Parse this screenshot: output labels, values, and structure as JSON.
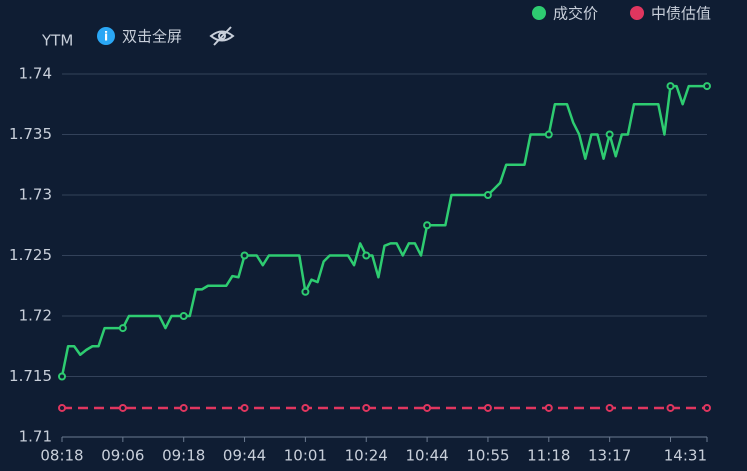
{
  "chart_data": {
    "type": "line",
    "y_axis_label": "YTM",
    "hint": "双击全屏",
    "categories": [
      "08:18",
      null,
      null,
      null,
      null,
      null,
      null,
      null,
      null,
      null,
      "09:06",
      null,
      null,
      null,
      null,
      null,
      null,
      null,
      null,
      null,
      "09:18",
      null,
      null,
      null,
      null,
      null,
      null,
      null,
      null,
      null,
      "09:44",
      null,
      null,
      null,
      null,
      null,
      null,
      null,
      null,
      null,
      "10:01",
      null,
      null,
      null,
      null,
      null,
      null,
      null,
      null,
      null,
      "10:24",
      null,
      null,
      null,
      null,
      null,
      null,
      null,
      null,
      null,
      "10:44",
      null,
      null,
      null,
      null,
      null,
      null,
      null,
      null,
      null,
      "10:55",
      null,
      null,
      null,
      null,
      null,
      null,
      null,
      null,
      null,
      "11:18",
      null,
      null,
      null,
      null,
      null,
      null,
      null,
      null,
      null,
      "13:17",
      null,
      null,
      null,
      null,
      null,
      null,
      null,
      null,
      null,
      null,
      null,
      null,
      null,
      null,
      null,
      "14:31"
    ],
    "series": [
      {
        "name": "成交价",
        "color": "#2ecc71",
        "dashed": false,
        "values": [
          1.715,
          1.7175,
          1.7175,
          1.7168,
          1.7172,
          1.7175,
          1.7175,
          1.719,
          1.719,
          1.719,
          1.719,
          1.72,
          1.72,
          1.72,
          1.72,
          1.72,
          1.72,
          1.719,
          1.72,
          1.72,
          1.72,
          1.72,
          1.7222,
          1.7222,
          1.7225,
          1.7225,
          1.7225,
          1.7225,
          1.7233,
          1.7232,
          1.725,
          1.725,
          1.725,
          1.7242,
          1.725,
          1.725,
          1.725,
          1.725,
          1.725,
          1.725,
          1.722,
          1.723,
          1.7228,
          1.7245,
          1.725,
          1.725,
          1.725,
          1.725,
          1.7242,
          1.726,
          1.725,
          1.725,
          1.7232,
          1.7258,
          1.726,
          1.726,
          1.725,
          1.726,
          1.726,
          1.725,
          1.7275,
          1.7275,
          1.7275,
          1.7275,
          1.73,
          1.73,
          1.73,
          1.73,
          1.73,
          1.73,
          1.73,
          1.7305,
          1.731,
          1.7325,
          1.7325,
          1.7325,
          1.7325,
          1.735,
          1.735,
          1.735,
          1.735,
          1.7375,
          1.7375,
          1.7375,
          1.736,
          1.735,
          1.733,
          1.735,
          1.735,
          1.733,
          1.735,
          1.7332,
          1.735,
          1.735,
          1.7375,
          1.7375,
          1.7375,
          1.7375,
          1.7375,
          1.735,
          1.739,
          1.739,
          1.7375,
          1.739,
          1.739,
          1.739,
          1.739
        ]
      },
      {
        "name": "中债估值",
        "color": "#e0365f",
        "dashed": true,
        "values": [
          1.7124,
          1.7124,
          1.7124,
          1.7124,
          1.7124,
          1.7124,
          1.7124,
          1.7124,
          1.7124,
          1.7124,
          1.7124,
          1.7124,
          1.7124,
          1.7124,
          1.7124,
          1.7124,
          1.7124,
          1.7124,
          1.7124,
          1.7124,
          1.7124,
          1.7124,
          1.7124,
          1.7124,
          1.7124,
          1.7124,
          1.7124,
          1.7124,
          1.7124,
          1.7124,
          1.7124,
          1.7124,
          1.7124,
          1.7124,
          1.7124,
          1.7124,
          1.7124,
          1.7124,
          1.7124,
          1.7124,
          1.7124,
          1.7124,
          1.7124,
          1.7124,
          1.7124,
          1.7124,
          1.7124,
          1.7124,
          1.7124,
          1.7124,
          1.7124,
          1.7124,
          1.7124,
          1.7124,
          1.7124,
          1.7124,
          1.7124,
          1.7124,
          1.7124,
          1.7124,
          1.7124,
          1.7124,
          1.7124,
          1.7124,
          1.7124,
          1.7124,
          1.7124,
          1.7124,
          1.7124,
          1.7124,
          1.7124,
          1.7124,
          1.7124,
          1.7124,
          1.7124,
          1.7124,
          1.7124,
          1.7124,
          1.7124,
          1.7124,
          1.7124,
          1.7124,
          1.7124,
          1.7124,
          1.7124,
          1.7124,
          1.7124,
          1.7124,
          1.7124,
          1.7124,
          1.7124,
          1.7124,
          1.7124,
          1.7124,
          1.7124,
          1.7124,
          1.7124,
          1.7124,
          1.7124,
          1.7124,
          1.7124,
          1.7124,
          1.7124,
          1.7124,
          1.7124,
          1.7124,
          1.7124
        ]
      }
    ],
    "ylim": [
      1.71,
      1.74
    ],
    "yticks": [
      1.71,
      1.715,
      1.72,
      1.725,
      1.73,
      1.735,
      1.74
    ],
    "grid": true,
    "legend": "top-right"
  }
}
